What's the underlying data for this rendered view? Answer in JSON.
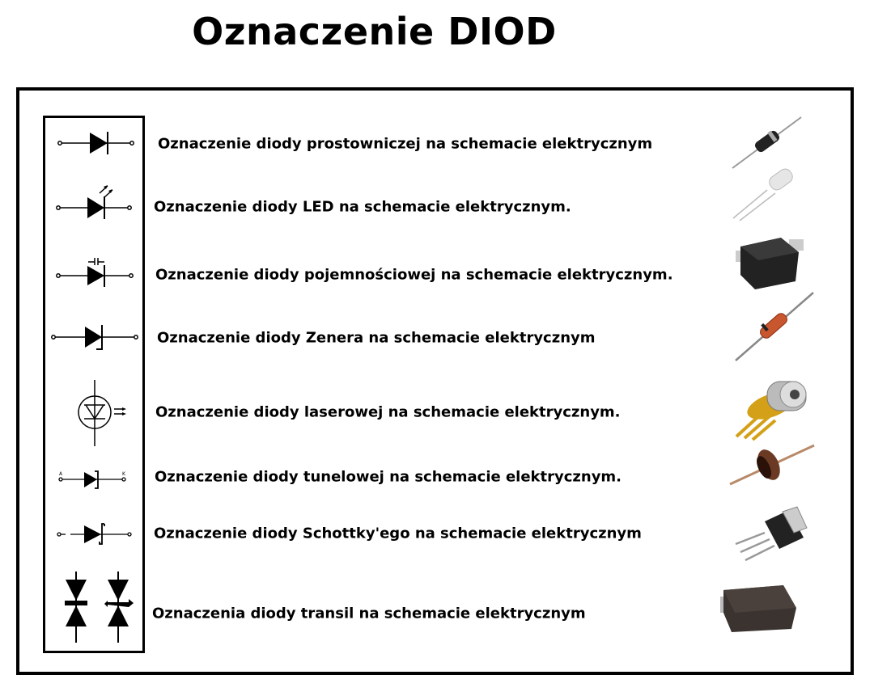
{
  "title": "Oznaczenie DIOD",
  "rows": [
    {
      "label": "Oznaczenie diody prostowniczej na schemacie elektrycznym",
      "symbol_icon": "rectifier-diode-icon",
      "photo": "axial-rectifier-diode"
    },
    {
      "label": "Oznaczenie diody LED na schemacie elektrycznym.",
      "symbol_icon": "led-icon",
      "photo": "clear-led"
    },
    {
      "label": "Oznaczenie diody pojemnościowej na schemacie elektrycznym.",
      "symbol_icon": "varicap-diode-icon",
      "photo": "smd-diode"
    },
    {
      "label": "Oznaczenie diody Zenera na schemacie elektrycznym",
      "symbol_icon": "zener-diode-icon",
      "photo": "glass-zener-diode"
    },
    {
      "label": "Oznaczenie diody laserowej na schemacie elektrycznym.",
      "symbol_icon": "laser-diode-icon",
      "photo": "laser-diode-can"
    },
    {
      "label": "Oznaczenie diody tunelowej na schemacie elektrycznym.",
      "symbol_icon": "tunnel-diode-icon",
      "photo": "tunnel-diode",
      "anode": "A",
      "cathode": "K"
    },
    {
      "label": "Oznaczenie diody Schottky'ego na schemacie elektrycznym",
      "symbol_icon": "schottky-diode-icon",
      "photo": "to220-diode"
    },
    {
      "label": "Oznaczenia diody transil na schemacie elektrycznym",
      "symbol_icon": "transil-diode-icon",
      "photo": "smd-transil"
    }
  ]
}
